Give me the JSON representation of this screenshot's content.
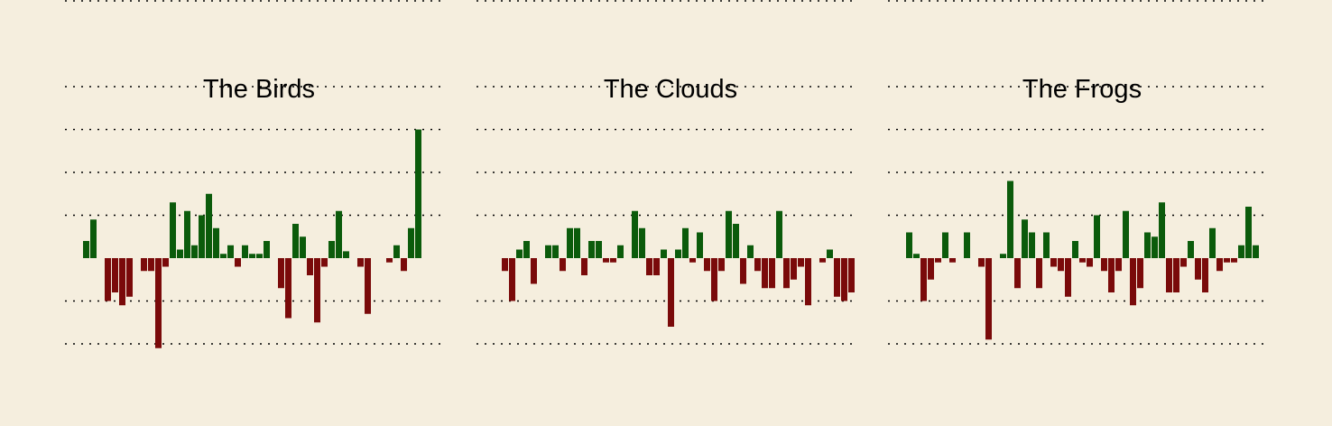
{
  "colors": {
    "background": "#f5eede",
    "positive": "#0b5b0b",
    "negative": "#7a0a0a",
    "grid": "#000000"
  },
  "chart_data": [
    {
      "type": "bar",
      "title": "The Birds",
      "grid": true,
      "ylim": [
        -1.05,
        3.0
      ],
      "gridlines": [
        -1,
        -0.5,
        0.5,
        1,
        1.5,
        2,
        3
      ],
      "values": [
        0.2,
        0.45,
        0,
        -0.5,
        -0.4,
        -0.55,
        -0.45,
        0,
        -0.15,
        -0.15,
        -1.05,
        -0.1,
        0.65,
        0.1,
        0.55,
        0.15,
        0.5,
        0.75,
        0.35,
        0.05,
        0.15,
        -0.1,
        0.15,
        0.05,
        0.05,
        0.2,
        0,
        -0.35,
        -0.7,
        0.4,
        0.25,
        -0.2,
        -0.75,
        -0.1,
        0.2,
        0.55,
        0.08,
        0,
        -0.1,
        -0.65,
        0,
        0,
        -0.05,
        0.15,
        -0.15,
        0.35,
        1.5
      ]
    },
    {
      "type": "bar",
      "title": "The Clouds",
      "grid": true,
      "ylim": [
        -1.05,
        3.0
      ],
      "gridlines": [
        -1,
        -0.5,
        0.5,
        1,
        1.5,
        2,
        3
      ],
      "values": [
        0.0,
        -0.15,
        -0.5,
        0.1,
        0.2,
        -0.3,
        0.0,
        0.15,
        0.15,
        -0.15,
        0.35,
        0.35,
        -0.2,
        0.2,
        0.2,
        -0.05,
        -0.05,
        0.15,
        0.0,
        0.55,
        0.35,
        -0.2,
        -0.2,
        0.1,
        -0.8,
        0.1,
        0.35,
        -0.05,
        0.3,
        -0.15,
        -0.5,
        -0.15,
        0.55,
        0.4,
        -0.3,
        0.15,
        -0.15,
        -0.35,
        -0.35,
        0.55,
        -0.35,
        -0.25,
        -0.1,
        -0.55,
        0.0,
        -0.05,
        0.1,
        -0.45,
        -0.5,
        -0.4
      ]
    },
    {
      "type": "bar",
      "title": "The Frogs",
      "grid": true,
      "ylim": [
        -1.05,
        3.0
      ],
      "gridlines": [
        -1,
        -0.5,
        0.5,
        1,
        1.5,
        2,
        3
      ],
      "values": [
        0.3,
        0.05,
        -0.5,
        -0.25,
        -0.05,
        0.3,
        -0.05,
        0.0,
        0.3,
        0.0,
        -0.1,
        -0.95,
        0.0,
        0.05,
        0.9,
        -0.35,
        0.45,
        0.3,
        -0.35,
        0.3,
        -0.1,
        -0.15,
        -0.45,
        0.2,
        -0.05,
        -0.1,
        0.5,
        -0.15,
        -0.4,
        -0.15,
        0.55,
        -0.55,
        -0.35,
        0.3,
        0.25,
        0.65,
        -0.4,
        -0.4,
        -0.1,
        0.2,
        -0.25,
        -0.4,
        0.35,
        -0.15,
        -0.05,
        -0.05,
        0.15,
        0.6,
        0.15
      ]
    }
  ]
}
